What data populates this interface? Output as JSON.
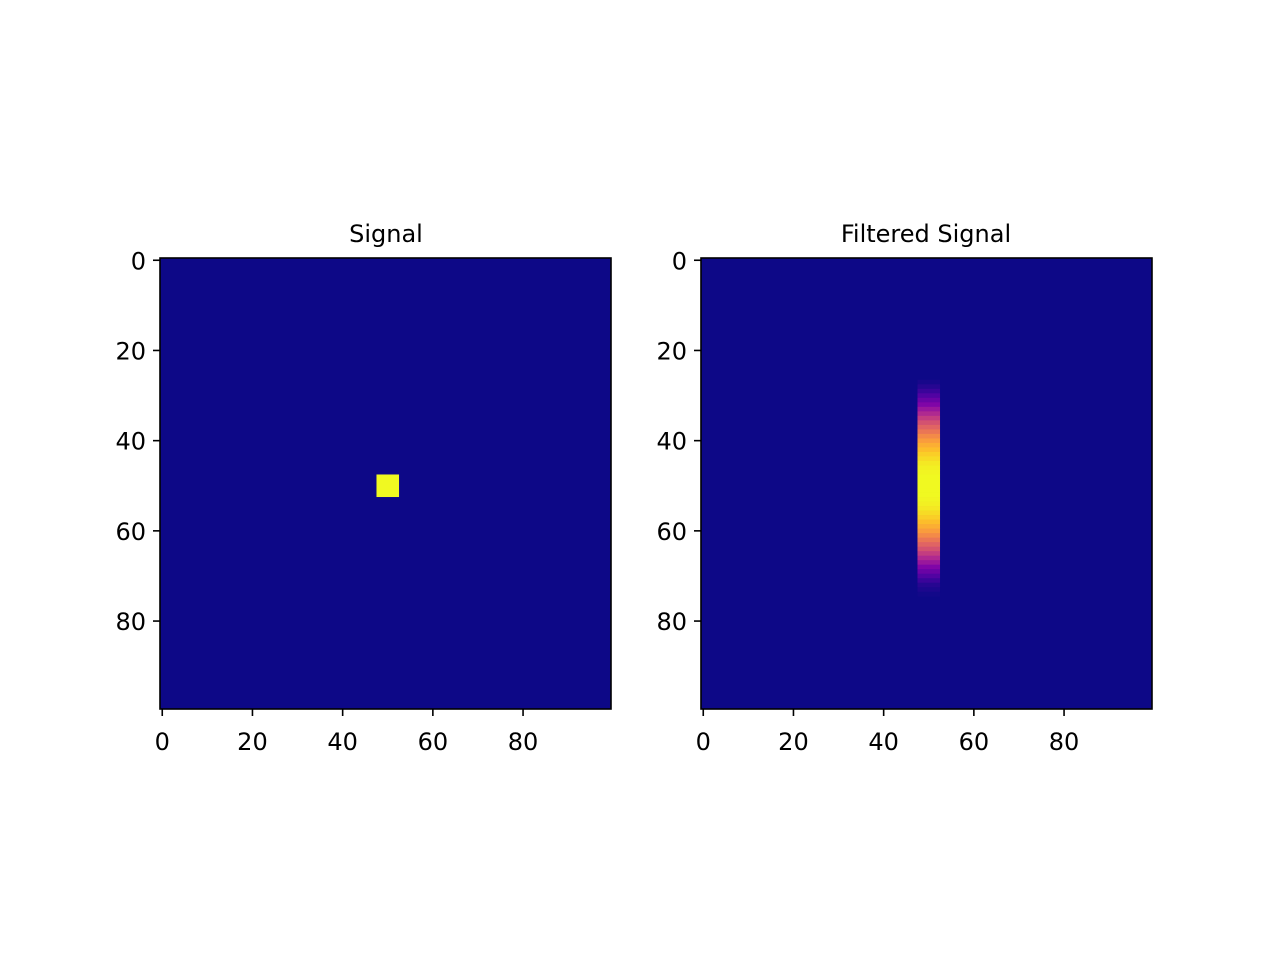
{
  "chart_data": [
    {
      "type": "heatmap",
      "title": "Signal",
      "colormap": "plasma",
      "shape": [
        100,
        100
      ],
      "xlim": [
        -0.5,
        99.5
      ],
      "ylim": [
        99.5,
        -0.5
      ],
      "xticks": [
        0,
        20,
        40,
        60,
        80
      ],
      "yticks": [
        0,
        20,
        40,
        60,
        80
      ],
      "background_value": 0,
      "regions": [
        {
          "x_range": [
            48,
            52
          ],
          "y_range": [
            48,
            52
          ],
          "value": 1.0
        }
      ]
    },
    {
      "type": "heatmap",
      "title": "Filtered Signal",
      "colormap": "plasma",
      "shape": [
        100,
        100
      ],
      "xlim": [
        -0.5,
        99.5
      ],
      "ylim": [
        99.5,
        -0.5
      ],
      "xticks": [
        0,
        20,
        40,
        60,
        80
      ],
      "yticks": [
        0,
        20,
        40,
        60,
        80
      ],
      "background_value": 0,
      "column_band": {
        "x_range": [
          48,
          52
        ],
        "rows": [
          27,
          28,
          29,
          30,
          31,
          32,
          33,
          34,
          35,
          36,
          37,
          38,
          39,
          40,
          41,
          42,
          43,
          44,
          45,
          46,
          47,
          48,
          49,
          50,
          51,
          52,
          53,
          54,
          55,
          56,
          57,
          58,
          59,
          60,
          61,
          62,
          63,
          64,
          65,
          66,
          67,
          68,
          69,
          70,
          71,
          72,
          73,
          74
        ],
        "values": [
          0.02,
          0.05,
          0.09,
          0.14,
          0.2,
          0.26,
          0.33,
          0.4,
          0.47,
          0.54,
          0.6,
          0.66,
          0.72,
          0.77,
          0.82,
          0.86,
          0.9,
          0.93,
          0.96,
          0.98,
          0.99,
          1.0,
          1.0,
          1.0,
          1.0,
          1.0,
          0.99,
          0.98,
          0.96,
          0.93,
          0.9,
          0.86,
          0.82,
          0.77,
          0.72,
          0.66,
          0.6,
          0.54,
          0.47,
          0.4,
          0.33,
          0.26,
          0.2,
          0.14,
          0.09,
          0.05,
          0.03,
          0.01
        ]
      }
    }
  ]
}
